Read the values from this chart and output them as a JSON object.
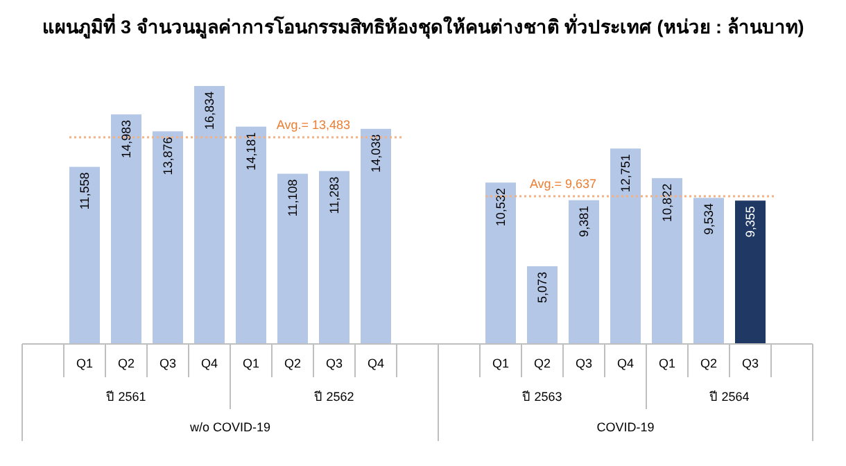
{
  "chart_data": [
    {
      "type": "bar",
      "title": "แผนภูมิที่ 3 จำนวนมูลค่าการโอนกรรมสิทธิห้องชุดให้คนต่างชาติ ทั่วประเทศ (หน่วย : ล้านบาท)",
      "categories": [
        "Q1",
        "Q2",
        "Q3",
        "Q4",
        "Q1",
        "Q2",
        "Q3",
        "Q4"
      ],
      "values": [
        11558,
        14983,
        13876,
        16834,
        14181,
        11108,
        11283,
        14038
      ],
      "colors": [
        "#b4c7e7",
        "#b4c7e7",
        "#b4c7e7",
        "#b4c7e7",
        "#b4c7e7",
        "#b4c7e7",
        "#b4c7e7",
        "#b4c7e7"
      ],
      "value_labels": [
        "11,558",
        "14,983",
        "13,876",
        "16,834",
        "14,181",
        "11,108",
        "11,283",
        "14,038"
      ],
      "ref_lines": [
        {
          "axis": "y",
          "value": 13483,
          "label": "Avg.= 13,483",
          "color": "#f4b183",
          "line_style": "dotted"
        }
      ],
      "annotations": [
        "ปี 2561",
        "ปี 2562",
        "w/o COVID-19"
      ]
    },
    {
      "type": "bar",
      "categories": [
        "Q1",
        "Q2",
        "Q3",
        "Q4",
        "Q1",
        "Q2",
        "Q3"
      ],
      "values": [
        10532,
        5073,
        9381,
        12751,
        10822,
        9534,
        9355
      ],
      "colors": [
        "#b4c7e7",
        "#b4c7e7",
        "#b4c7e7",
        "#b4c7e7",
        "#b4c7e7",
        "#b4c7e7",
        "#203864"
      ],
      "value_labels": [
        "10,532",
        "5,073",
        "9,381",
        "12,751",
        "10,822",
        "9,534",
        "9,355"
      ],
      "ref_lines": [
        {
          "axis": "y",
          "value": 9637,
          "label": "Avg.= 9,637",
          "color": "#f4b183",
          "line_style": "dotted"
        }
      ],
      "annotations": [
        "ปี 2563",
        "ปี 2564",
        "COVID-19"
      ]
    }
  ]
}
